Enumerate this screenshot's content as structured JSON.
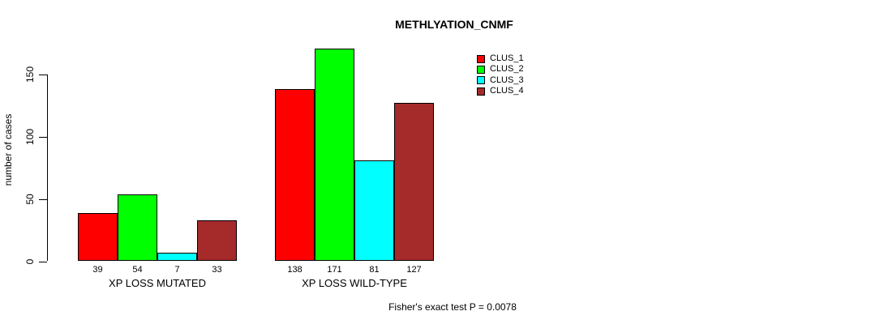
{
  "chart_data": {
    "type": "bar",
    "title": "METHLYATION_CNMF",
    "ylabel": "number of cases",
    "xlabel": "",
    "categories": [
      "XP LOSS MUTATED",
      "XP LOSS WILD-TYPE"
    ],
    "series": [
      {
        "name": "CLUS_1",
        "color": "#FF0000",
        "values": [
          39,
          138
        ]
      },
      {
        "name": "CLUS_2",
        "color": "#00FF00",
        "values": [
          54,
          171
        ]
      },
      {
        "name": "CLUS_3",
        "color": "#00FFFF",
        "values": [
          7,
          81
        ]
      },
      {
        "name": "CLUS_4",
        "color": "#A52A2A",
        "values": [
          33,
          127
        ]
      }
    ],
    "yticks": [
      0,
      50,
      100,
      150
    ],
    "ylim": [
      0,
      175
    ],
    "grid": false,
    "legend_position": "top-right",
    "bar_value_labels": true,
    "annotation": "Fisher's exact test P = 0.0078"
  }
}
